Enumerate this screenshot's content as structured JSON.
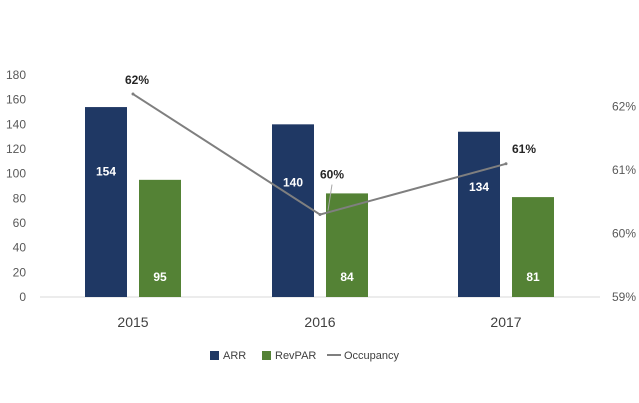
{
  "chart_data": {
    "type": "bar",
    "categories": [
      "2015",
      "2016",
      "2017"
    ],
    "series": [
      {
        "name": "ARR",
        "kind": "bar",
        "axis": "left",
        "values": [
          154,
          140,
          134
        ],
        "color": "#1f3864",
        "labels": [
          "154",
          "140",
          "134"
        ]
      },
      {
        "name": "RevPAR",
        "kind": "bar",
        "axis": "left",
        "values": [
          95,
          84,
          81
        ],
        "color": "#548235",
        "labels": [
          "95",
          "84",
          "81"
        ]
      },
      {
        "name": "Occupancy",
        "kind": "line",
        "axis": "right",
        "values": [
          62.2,
          60.3,
          61.1
        ],
        "color": "#7f7f7f",
        "labels": [
          "62%",
          "60%",
          "61%"
        ]
      }
    ],
    "left_axis": {
      "ylim": [
        0,
        180
      ],
      "ticks": [
        "0",
        "20",
        "40",
        "60",
        "80",
        "100",
        "120",
        "140",
        "160",
        "180"
      ]
    },
    "right_axis": {
      "ylim": [
        59,
        62.5
      ],
      "ticks": [
        "59%",
        "60%",
        "61%",
        "62%"
      ]
    },
    "grid": false,
    "legend": {
      "position": "bottom",
      "items": [
        "ARR",
        "RevPAR",
        "Occupancy"
      ]
    }
  }
}
